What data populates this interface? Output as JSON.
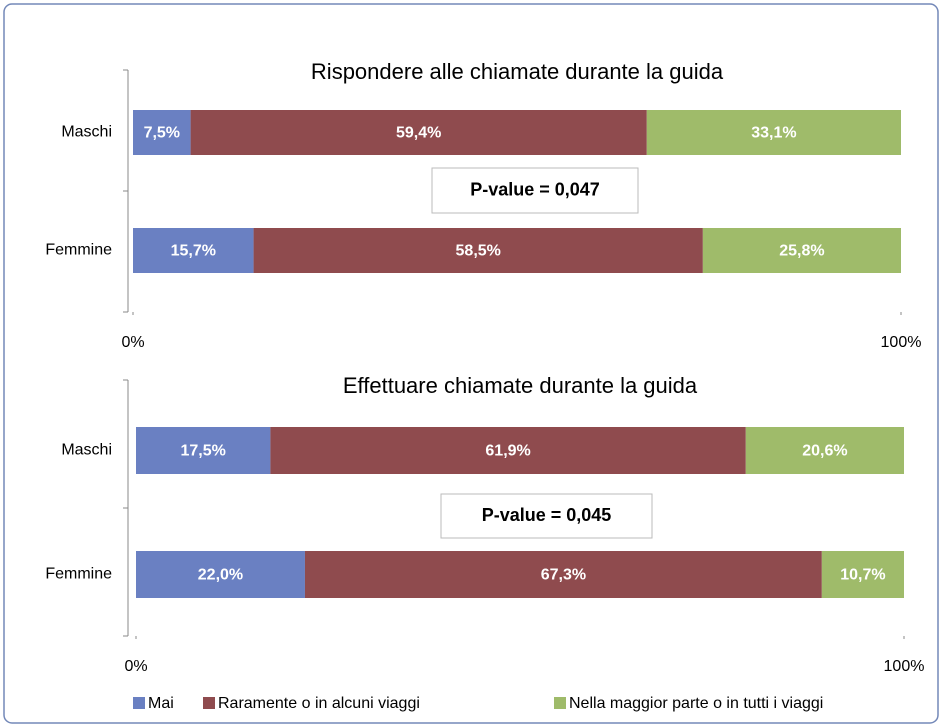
{
  "chart_data": [
    {
      "type": "bar",
      "orientation": "horizontal",
      "stacked": true,
      "title": "Rispondere alle chiamate  durante la guida",
      "categories": [
        "Maschi",
        "Femmine"
      ],
      "series": [
        {
          "name": "Mai",
          "color": "#6a80c2",
          "values": [
            7.5,
            15.7
          ],
          "value_labels": [
            "7,5%",
            "15,7%"
          ]
        },
        {
          "name": "Raramente o in alcuni viaggi",
          "color": "#8f4b4e",
          "values": [
            59.4,
            58.5
          ],
          "value_labels": [
            "59,4%",
            "58,5%"
          ]
        },
        {
          "name": "Nella maggior parte o in tutti i viaggi",
          "color": "#9fbb6a",
          "values": [
            33.1,
            25.8
          ],
          "value_labels": [
            "33,1%",
            "25,8%"
          ]
        }
      ],
      "xlim": [
        0,
        100
      ],
      "xticks": [
        {
          "value": 0,
          "label": "0%"
        },
        {
          "value": 100,
          "label": "100%"
        }
      ],
      "annotation": "P-value = 0,047"
    },
    {
      "type": "bar",
      "orientation": "horizontal",
      "stacked": true,
      "title": "Effettuare chiamate durante la guida",
      "categories": [
        "Maschi",
        "Femmine"
      ],
      "series": [
        {
          "color": "#6a80c2",
          "values": [
            17.5,
            22.0
          ],
          "value_labels": [
            "17,5%",
            "22,0%"
          ]
        },
        {
          "color": "#8f4b4e",
          "values": [
            61.9,
            67.3
          ],
          "value_labels": [
            "61,9%",
            "67,3%"
          ]
        },
        {
          "color": "#9fbb6a",
          "values": [
            20.6,
            10.7
          ],
          "value_labels": [
            "20,6%",
            "10,7%"
          ]
        }
      ],
      "xlim": [
        0,
        100
      ],
      "xticks": [
        {
          "value": 0,
          "label": "0%"
        },
        {
          "value": 100,
          "label": "100%"
        }
      ],
      "annotation": "P-value = 0,045"
    }
  ]
}
